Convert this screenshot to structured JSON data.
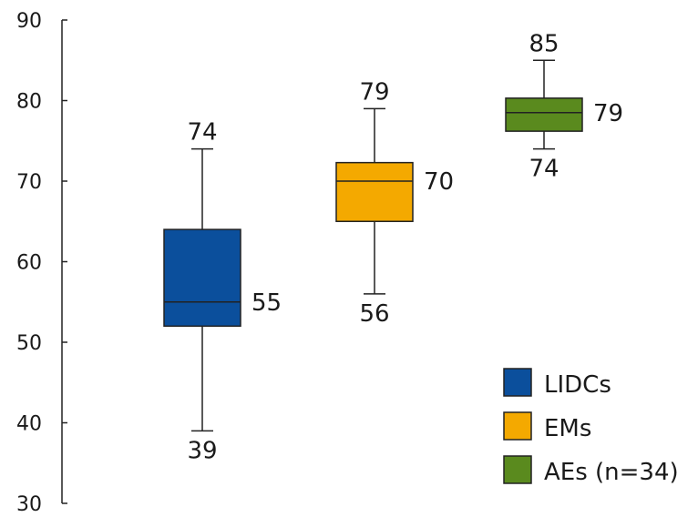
{
  "chart_data": {
    "type": "box",
    "title": "",
    "xlabel": "",
    "ylabel": "",
    "ylim": [
      30,
      90
    ],
    "yticks": [
      30,
      40,
      50,
      60,
      70,
      80,
      90
    ],
    "grid": false,
    "legend_position": "bottom-right",
    "series": [
      {
        "name": "LIDCs",
        "color": "#0b4f9c",
        "min": 39,
        "q1": 52,
        "median": 55,
        "q3": 64,
        "max": 74,
        "labels": {
          "max": "74",
          "median": "55",
          "min": "39"
        }
      },
      {
        "name": "EMs",
        "color": "#f4a900",
        "min": 56,
        "q1": 65,
        "median": 70,
        "q3": 72.3,
        "max": 79,
        "labels": {
          "max": "79",
          "median": "70",
          "min": "56"
        }
      },
      {
        "name": "AEs (n=34)",
        "color": "#5a8a1e",
        "min": 74,
        "q1": 76.2,
        "median": 78.5,
        "q3": 80.3,
        "max": 85,
        "labels": {
          "max": "85",
          "median": "79",
          "min": "74"
        }
      }
    ]
  }
}
